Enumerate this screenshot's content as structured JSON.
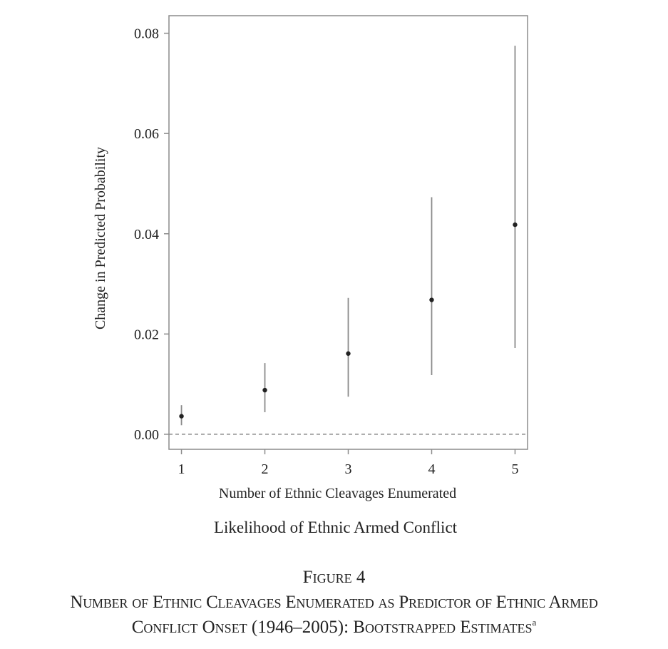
{
  "chart_data": {
    "type": "scatter",
    "subtitle": "Likelihood of Ethnic Armed Conflict",
    "xlabel": "Number of Ethnic Cleavages Enumerated",
    "ylabel": "Change in Predicted Probability",
    "x_ticks": [
      "1",
      "2",
      "3",
      "4",
      "5"
    ],
    "y_ticks": [
      "0.00",
      "0.02",
      "0.04",
      "0.06",
      "0.08"
    ],
    "xlim": [
      0.85,
      5.15
    ],
    "ylim": [
      -0.003,
      0.0835
    ],
    "reference_line": {
      "y": 0.0,
      "style": "dashed"
    },
    "grid": false,
    "points": [
      {
        "x": 1,
        "y": 0.0036,
        "lower": 0.0018,
        "upper": 0.0058
      },
      {
        "x": 2,
        "y": 0.0088,
        "lower": 0.0044,
        "upper": 0.0142
      },
      {
        "x": 3,
        "y": 0.0161,
        "lower": 0.0075,
        "upper": 0.0272
      },
      {
        "x": 4,
        "y": 0.0268,
        "lower": 0.0118,
        "upper": 0.0473
      },
      {
        "x": 5,
        "y": 0.0418,
        "lower": 0.0172,
        "upper": 0.0775
      }
    ],
    "colors": {
      "point": "#222222",
      "interval": "#8a8a8a",
      "frame": "#8c8c8c",
      "reference": "#8a8a8a"
    }
  },
  "figure": {
    "label": "Figure 4",
    "caption_line1": "Number of Ethnic Cleavages Enumerated as Predictor of Ethnic Armed",
    "caption_line2": "Conflict Onset (1946–2005): Bootstrapped Estimates",
    "footnote_marker": "a"
  }
}
